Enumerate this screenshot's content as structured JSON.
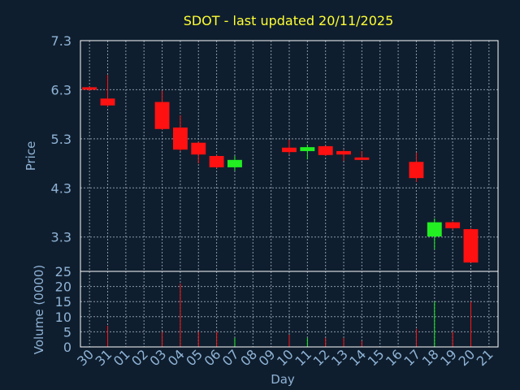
{
  "colors": {
    "background": "#0f1e2e",
    "plot_border": "#ffffff",
    "grid": "#8a98a8",
    "title": "#ffff33",
    "axis_text": "#8fb3d6",
    "up": "#22ee22",
    "down": "#ff1111"
  },
  "chart_data": {
    "type": "candlestick",
    "title": "SDOT - last updated 20/11/2025",
    "xlabel": "Day",
    "ylabel": "Price",
    "volume_label": "Volume (0000)",
    "grid": true,
    "price_ylim": [
      2.6,
      7.3
    ],
    "price_ticks": [
      "7.3",
      "6.3",
      "5.3",
      "4.3",
      "3.3"
    ],
    "volume_ylim": [
      0,
      25
    ],
    "volume_ticks": [
      "25",
      "20",
      "15",
      "10",
      "5",
      "0"
    ],
    "x_ticks": [
      "30",
      "31",
      "01",
      "02",
      "03",
      "04",
      "05",
      "06",
      "07",
      "08",
      "09",
      "10",
      "11",
      "12",
      "13",
      "14",
      "15",
      "16",
      "17",
      "18",
      "19",
      "20",
      "21"
    ],
    "candles": [
      {
        "day": "30",
        "open": 6.35,
        "close": 6.3,
        "high": 6.36,
        "low": 6.28,
        "volume": 0
      },
      {
        "day": "31",
        "open": 6.12,
        "close": 5.98,
        "high": 6.6,
        "low": 5.95,
        "volume": 7
      },
      {
        "day": "03",
        "open": 6.05,
        "close": 5.5,
        "high": 6.28,
        "low": 5.48,
        "volume": 5
      },
      {
        "day": "04",
        "open": 5.53,
        "close": 5.08,
        "high": 5.78,
        "low": 5.05,
        "volume": 21
      },
      {
        "day": "05",
        "open": 5.22,
        "close": 4.98,
        "high": 5.24,
        "low": 4.8,
        "volume": 5
      },
      {
        "day": "06",
        "open": 4.95,
        "close": 4.72,
        "high": 4.97,
        "low": 4.7,
        "volume": 5
      },
      {
        "day": "07",
        "open": 4.72,
        "close": 4.87,
        "high": 4.95,
        "low": 4.65,
        "volume": 3
      },
      {
        "day": "10",
        "open": 5.12,
        "close": 5.03,
        "high": 5.28,
        "low": 4.98,
        "volume": 4
      },
      {
        "day": "11",
        "open": 5.05,
        "close": 5.13,
        "high": 5.18,
        "low": 4.88,
        "volume": 3
      },
      {
        "day": "12",
        "open": 5.15,
        "close": 4.97,
        "high": 5.16,
        "low": 4.95,
        "volume": 3
      },
      {
        "day": "13",
        "open": 5.05,
        "close": 4.98,
        "high": 5.08,
        "low": 4.85,
        "volume": 3
      },
      {
        "day": "14",
        "open": 4.92,
        "close": 4.88,
        "high": 5.05,
        "low": 4.87,
        "volume": 2
      },
      {
        "day": "17",
        "open": 4.83,
        "close": 4.5,
        "high": 5.02,
        "low": 4.42,
        "volume": 6
      },
      {
        "day": "18",
        "open": 3.31,
        "close": 3.6,
        "high": 3.68,
        "low": 3.05,
        "volume": 15
      },
      {
        "day": "19",
        "open": 3.6,
        "close": 3.48,
        "high": 3.62,
        "low": 3.45,
        "volume": 5
      },
      {
        "day": "20",
        "open": 3.46,
        "close": 2.78,
        "high": 3.48,
        "low": 2.78,
        "volume": 15
      }
    ]
  }
}
